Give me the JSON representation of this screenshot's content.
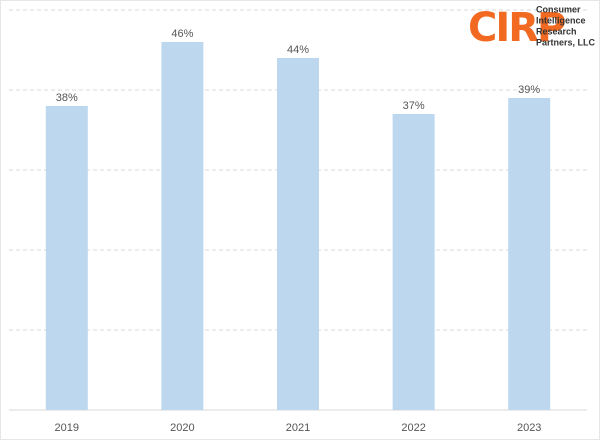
{
  "chart_data": {
    "type": "bar",
    "categories": [
      "2019",
      "2020",
      "2021",
      "2022",
      "2023"
    ],
    "values": [
      38,
      46,
      44,
      37,
      39
    ],
    "value_labels": [
      "38%",
      "46%",
      "44%",
      "37%",
      "39%"
    ],
    "color": "#bdd7ee",
    "ylim": [
      0,
      50
    ],
    "yticks": [
      10,
      20,
      30,
      40,
      50
    ],
    "grid": true
  },
  "logo": {
    "mark": "CIRP",
    "lines": [
      "Consumer",
      "Intelligence",
      "Research",
      "Partners, LLC"
    ]
  }
}
